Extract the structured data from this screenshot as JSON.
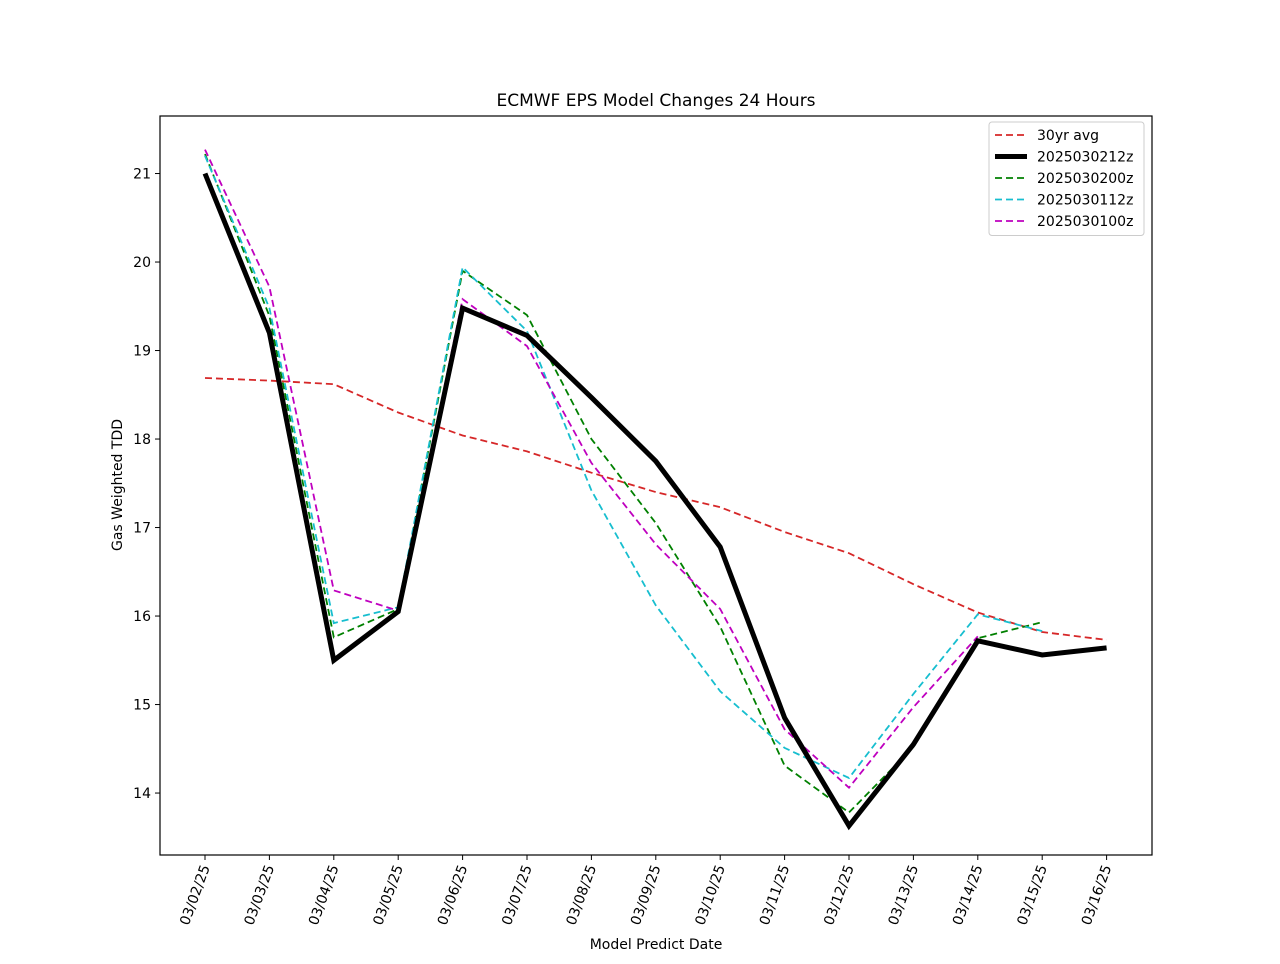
{
  "chart_data": {
    "type": "line",
    "title": "ECMWF EPS Model Changes 24 Hours",
    "xlabel": "Model Predict Date",
    "ylabel": "Gas Weighted TDD",
    "categories": [
      "03/02/25",
      "03/03/25",
      "03/04/25",
      "03/05/25",
      "03/06/25",
      "03/07/25",
      "03/08/25",
      "03/09/25",
      "03/10/25",
      "03/11/25",
      "03/12/25",
      "03/13/25",
      "03/14/25",
      "03/15/25",
      "03/16/25"
    ],
    "yticks": [
      14,
      15,
      16,
      17,
      18,
      19,
      20,
      21
    ],
    "ylim": [
      13.3,
      21.65
    ],
    "grid": false,
    "legend_position": "top-right",
    "series": [
      {
        "name": "30yr avg",
        "color": "#d62728",
        "style": "dashed",
        "values": [
          18.69,
          18.66,
          18.62,
          18.3,
          18.04,
          17.86,
          17.62,
          17.4,
          17.23,
          16.95,
          16.71,
          16.36,
          16.04,
          15.82,
          15.73
        ]
      },
      {
        "name": "2025030212z",
        "color": "#000000",
        "style": "solid-thick",
        "values": [
          21.0,
          19.2,
          15.5,
          16.05,
          19.48,
          19.17,
          18.47,
          17.75,
          16.78,
          14.85,
          13.63,
          14.55,
          15.72,
          15.56,
          15.64
        ]
      },
      {
        "name": "2025030200z",
        "color": "#008000",
        "style": "dashed",
        "values": [
          21.22,
          19.39,
          15.76,
          16.08,
          19.9,
          19.4,
          18.0,
          17.05,
          15.88,
          14.31,
          13.78,
          14.52,
          15.75,
          15.93,
          null
        ]
      },
      {
        "name": "2025030112z",
        "color": "#17becf",
        "style": "dashed",
        "values": [
          21.2,
          19.48,
          15.92,
          16.1,
          19.94,
          19.22,
          17.42,
          16.12,
          15.15,
          14.51,
          14.17,
          15.12,
          16.02,
          15.83,
          null
        ]
      },
      {
        "name": "2025030100z",
        "color": "#bf00bf",
        "style": "dashed",
        "values": [
          21.27,
          19.72,
          16.29,
          16.06,
          19.58,
          19.05,
          17.73,
          16.81,
          16.08,
          14.72,
          14.06,
          14.97,
          15.77,
          null,
          null
        ]
      }
    ]
  }
}
